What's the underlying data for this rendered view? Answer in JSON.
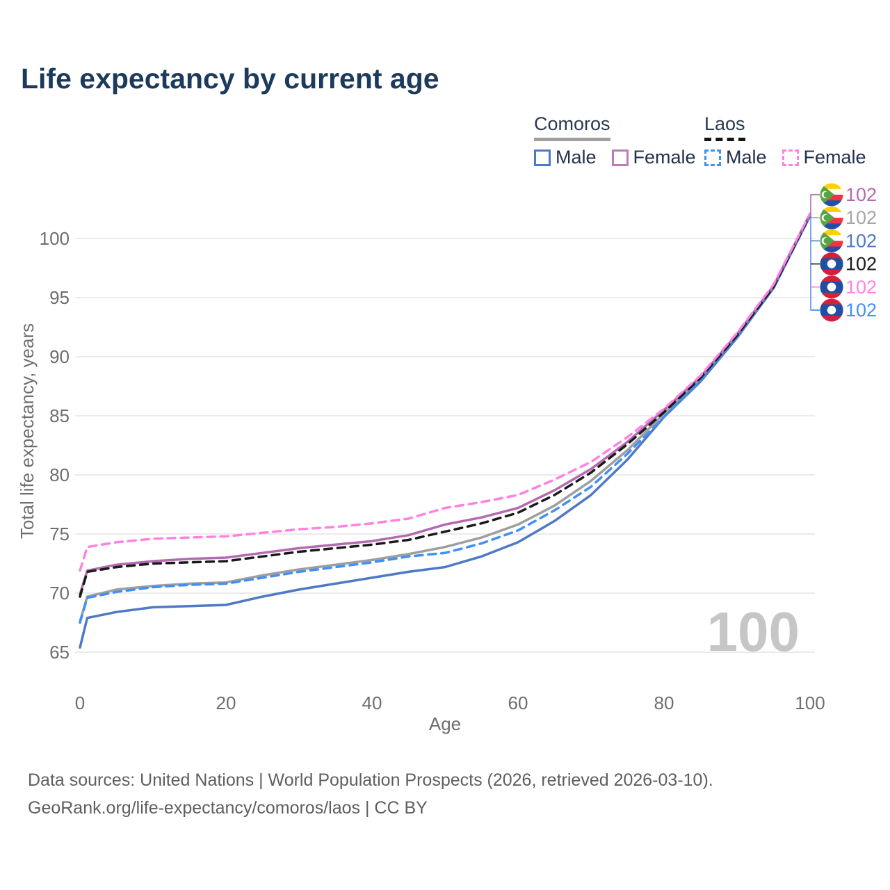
{
  "title": "Life expectancy by current age",
  "legend": {
    "groups": [
      {
        "label": "Comoros",
        "underline_color": "#a0a0a0",
        "underline_style": "solid",
        "items": [
          {
            "label": "Male",
            "color": "#4e79c4",
            "style": "solid"
          },
          {
            "label": "Female",
            "color": "#bc7bbc",
            "style": "solid"
          }
        ]
      },
      {
        "label": "Laos",
        "underline_color": "#141414",
        "underline_style": "dashed",
        "items": [
          {
            "label": "Male",
            "color": "#418ff7",
            "style": "dashed"
          },
          {
            "label": "Female",
            "color": "#ff82e2",
            "style": "dashed"
          }
        ]
      }
    ]
  },
  "chart_data": {
    "type": "line",
    "title": "Life expectancy by current age",
    "xlabel": "Age",
    "ylabel": "Total life expectancy, years",
    "xlim": [
      0,
      100
    ],
    "ylim": [
      64,
      103.5
    ],
    "x_ticks": [
      0,
      20,
      40,
      60,
      80,
      100
    ],
    "y_ticks": [
      65,
      70,
      75,
      80,
      85,
      90,
      95,
      100
    ],
    "grid": "horizontal-only",
    "legend_position": "top-right",
    "watermark": "100",
    "x": [
      0,
      1,
      5,
      10,
      15,
      20,
      25,
      30,
      35,
      40,
      45,
      50,
      55,
      60,
      65,
      70,
      75,
      80,
      85,
      90,
      95,
      100
    ],
    "series": [
      {
        "name": "Comoros Female",
        "country": "comoros",
        "sex": "female",
        "color": "#b46ab0",
        "label_color": "#b46ab0",
        "dash": "solid",
        "z": 3,
        "end_label": "102",
        "values": [
          69.9,
          71.9,
          72.4,
          72.7,
          72.9,
          73.0,
          73.4,
          73.8,
          74.1,
          74.4,
          74.9,
          75.8,
          76.4,
          77.2,
          78.7,
          80.5,
          82.8,
          85.5,
          88.3,
          91.9,
          96.0,
          102.1
        ]
      },
      {
        "name": "Comoros Total",
        "country": "comoros",
        "sex": "total",
        "color": "#9e9e9e",
        "label_color": "#a6a6a6",
        "dash": "solid",
        "z": 1,
        "end_label": "102",
        "values": [
          67.6,
          69.7,
          70.3,
          70.6,
          70.8,
          70.9,
          71.5,
          72.0,
          72.4,
          72.8,
          73.3,
          73.9,
          74.7,
          75.8,
          77.4,
          79.5,
          82.1,
          85.2,
          88.1,
          91.8,
          95.9,
          102.0
        ]
      },
      {
        "name": "Comoros Male",
        "country": "comoros",
        "sex": "male",
        "color": "#4e79c4",
        "label_color": "#4e79c4",
        "dash": "solid",
        "z": 2,
        "end_label": "102",
        "values": [
          65.4,
          67.9,
          68.4,
          68.8,
          68.9,
          69.0,
          69.7,
          70.3,
          70.8,
          71.3,
          71.8,
          72.2,
          73.1,
          74.3,
          76.1,
          78.3,
          81.3,
          84.9,
          87.9,
          91.6,
          95.8,
          101.9
        ]
      },
      {
        "name": "Laos Total",
        "country": "laos",
        "sex": "total",
        "color": "#1a1a1a",
        "label_color": "#1a1a1a",
        "dash": "dashed",
        "z": 5,
        "end_label": "102",
        "values": [
          69.7,
          71.8,
          72.2,
          72.5,
          72.6,
          72.7,
          73.1,
          73.5,
          73.8,
          74.1,
          74.5,
          75.2,
          75.9,
          76.8,
          78.3,
          80.2,
          82.6,
          85.3,
          88.2,
          91.8,
          95.9,
          102.0
        ]
      },
      {
        "name": "Laos Female",
        "country": "laos",
        "sex": "female",
        "color": "#ff82e2",
        "label_color": "#ff82e2",
        "dash": "dashed",
        "z": 6,
        "end_label": "102",
        "values": [
          71.9,
          73.9,
          74.3,
          74.6,
          74.7,
          74.8,
          75.1,
          75.4,
          75.6,
          75.9,
          76.3,
          77.2,
          77.7,
          78.3,
          79.6,
          81.1,
          83.2,
          85.6,
          88.4,
          92.0,
          96.1,
          102.1
        ]
      },
      {
        "name": "Laos Male",
        "country": "laos",
        "sex": "male",
        "color": "#418ff7",
        "label_color": "#418ff7",
        "dash": "dashed",
        "z": 4,
        "end_label": "102",
        "values": [
          67.5,
          69.6,
          70.1,
          70.5,
          70.7,
          70.8,
          71.3,
          71.8,
          72.2,
          72.6,
          73.1,
          73.4,
          74.2,
          75.3,
          77.0,
          79.0,
          81.8,
          84.9,
          88.0,
          91.7,
          95.8,
          101.9
        ]
      }
    ]
  },
  "footer": {
    "line1": "Data sources: United Nations | World Population Prospects (2026, retrieved 2026-03-10).",
    "line2": "GeoRank.org/life-expectancy/comoros/laos | CC BY"
  },
  "colors": {
    "title": "#1c3a5c",
    "axis_text": "#6e6e6e",
    "gridline": "#ebebeb",
    "watermark": "#c6c6c6"
  }
}
